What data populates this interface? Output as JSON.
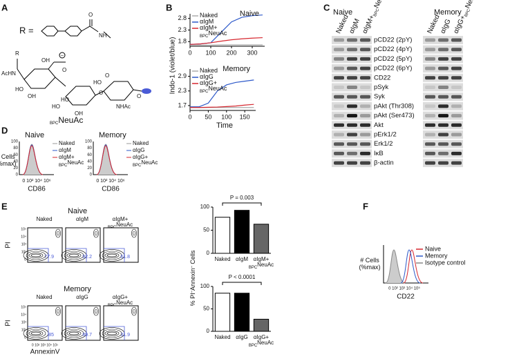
{
  "panels": {
    "A": {
      "letter": "A",
      "r_label": "R =",
      "atoms": [
        "R",
        "OH",
        "AcHN",
        "HO",
        "OH",
        "O",
        "HO",
        "HO",
        "OH",
        "O",
        "O",
        "HO",
        "NHAc",
        "O",
        "NH",
        "O"
      ],
      "name": [
        "",
        "BPC",
        "NeuAc"
      ]
    },
    "B": {
      "letter": "B",
      "y_label": "Indo-1 (violet/blue)",
      "x_label": "Time"
    },
    "C": {
      "letter": "C",
      "naive": "Naive",
      "memory": "Memory",
      "naive_lanes": [
        [
          "Naked"
        ],
        [
          "αIgM"
        ],
        [
          "αIgM+",
          "BPC",
          "NeuAc"
        ]
      ],
      "memory_lanes": [
        [
          "Naked"
        ],
        [
          "αIgG"
        ],
        [
          "αIgG+",
          "BPC",
          "NeuAc"
        ]
      ],
      "rows": [
        "pCD22 (2pY)",
        "pCD22 (4pY)",
        "pCD22 (5pY)",
        "pCD22 (6pY)",
        "CD22",
        "pSyk",
        "Syk",
        "pAkt (Thr308)",
        "pAkt (Ser473)",
        "Akt",
        "pErk1/2",
        "Erk1/2",
        "IκB",
        "β-actin"
      ]
    },
    "D": {
      "letter": "D",
      "naive": "Naive",
      "memory": "Memory",
      "y_label": [
        "# Cells",
        "(%max)"
      ],
      "y_ticks": [
        "100",
        "80",
        "60",
        "40",
        "20",
        "0"
      ],
      "x_ticks": "0 10² 10⁴ 10⁶",
      "x_label": "CD86",
      "naive_legend": [
        [
          "Naked"
        ],
        [
          "αIgM"
        ],
        [
          "αIgM+",
          "BPC",
          "NeuAc"
        ]
      ],
      "memory_legend": [
        [
          "Naked"
        ],
        [
          "αIgG"
        ],
        [
          "αIgG+",
          "BPC",
          "NeuAc"
        ]
      ]
    },
    "E": {
      "letter": "E",
      "naive": "Naive",
      "memory": "Memory",
      "naive_cols": [
        [
          "Naked"
        ],
        [
          "αIgM"
        ],
        [
          "αIgM+",
          "BPC",
          "NeuAc"
        ]
      ],
      "memory_cols": [
        [
          "Naked"
        ],
        [
          "αIgG"
        ],
        [
          "αIgG+",
          "BPC",
          "NeuAc"
        ]
      ],
      "naive_pct": [
        "77.9",
        "92.2",
        "61.8"
      ],
      "memory_pct": [
        "85",
        "89.7",
        "31.9"
      ],
      "y_label": "PI",
      "x_label": "AnnexinV",
      "y_ticks": [
        "10⁵",
        "10⁴",
        "10³",
        "10²",
        "0"
      ],
      "x_ticks": "0 10² 10³ 10⁴ 10⁵"
    },
    "F": {
      "letter": "F",
      "y_label": [
        "# Cells",
        "(%max)"
      ],
      "x_label": "CD22",
      "x_ticks": "0 10² 10³ 10⁴ 10⁵",
      "legend": [
        "Naive",
        "Memory",
        "Isotype control"
      ],
      "colors": [
        "#d6262e",
        "#2b57c9",
        "#888888"
      ]
    }
  },
  "chart_data": [
    {
      "type": "line",
      "title": "Naive",
      "x": [
        0,
        50,
        100,
        150,
        200,
        250,
        300,
        350
      ],
      "xlim": [
        0,
        360
      ],
      "xticks": [
        0,
        100,
        200,
        300
      ],
      "ylim": [
        1.6,
        3.0
      ],
      "yticks": [
        1.8,
        2.3,
        2.8
      ],
      "legend": "upper left",
      "series": [
        {
          "name": [
            "Naked"
          ],
          "color": "#aaaaaa",
          "values": [
            1.65,
            1.65,
            1.65,
            1.66,
            1.66,
            1.66,
            1.66,
            1.66
          ]
        },
        {
          "name": [
            "αIgM"
          ],
          "color": "#2b57c9",
          "values": [
            1.68,
            1.7,
            1.75,
            2.2,
            2.65,
            2.85,
            2.92,
            2.95
          ]
        },
        {
          "name": [
            "αIgM+",
            "BPC",
            "NeuAc"
          ],
          "color": "#d6262e",
          "values": [
            1.68,
            1.7,
            1.75,
            1.82,
            1.88,
            1.92,
            1.95,
            1.97
          ]
        }
      ]
    },
    {
      "type": "line",
      "title": "Memory",
      "x": [
        0,
        25,
        50,
        75,
        100,
        125,
        150,
        175
      ],
      "xlim": [
        0,
        180
      ],
      "xticks": [
        0,
        50,
        100,
        150
      ],
      "ylim": [
        1.5,
        3.2
      ],
      "yticks": [
        1.7,
        2.3,
        2.9
      ],
      "legend": "upper left",
      "series": [
        {
          "name": [
            "Naked"
          ],
          "color": "#aaaaaa",
          "values": [
            1.62,
            1.62,
            1.62,
            1.62,
            1.62,
            1.62,
            1.62,
            1.62
          ]
        },
        {
          "name": [
            "αIgG"
          ],
          "color": "#2b57c9",
          "values": [
            1.65,
            1.65,
            1.8,
            2.3,
            2.55,
            2.65,
            2.7,
            2.75
          ]
        },
        {
          "name": [
            "αIgG+",
            "BPC",
            "NeuAc"
          ],
          "color": "#d6262e",
          "values": [
            1.62,
            1.62,
            1.63,
            1.64,
            1.66,
            1.68,
            1.72,
            1.75
          ]
        }
      ]
    },
    {
      "type": "bar",
      "categories": [
        [
          "Naked"
        ],
        [
          "αIgM"
        ],
        [
          "αIgM+",
          "BPC",
          "NeuAc"
        ]
      ],
      "values": [
        78,
        93,
        63
      ],
      "colors": [
        "#ffffff",
        "#000000",
        "#666666"
      ],
      "ylim": [
        0,
        100
      ],
      "yticks": [
        0,
        50,
        100
      ],
      "annotation": "P = 0.003"
    },
    {
      "type": "bar",
      "categories": [
        [
          "Naked"
        ],
        [
          "αIgG"
        ],
        [
          "αIgG+",
          "BPC",
          "NeuAc"
        ]
      ],
      "values": [
        85,
        85,
        27
      ],
      "colors": [
        "#ffffff",
        "#000000",
        "#666666"
      ],
      "ylim": [
        0,
        100
      ],
      "yticks": [
        0,
        50,
        100
      ],
      "annotation": "P < 0.0001",
      "y_label": [
        "% PI",
        "–",
        "Annexin",
        "–",
        " Cells"
      ]
    }
  ]
}
